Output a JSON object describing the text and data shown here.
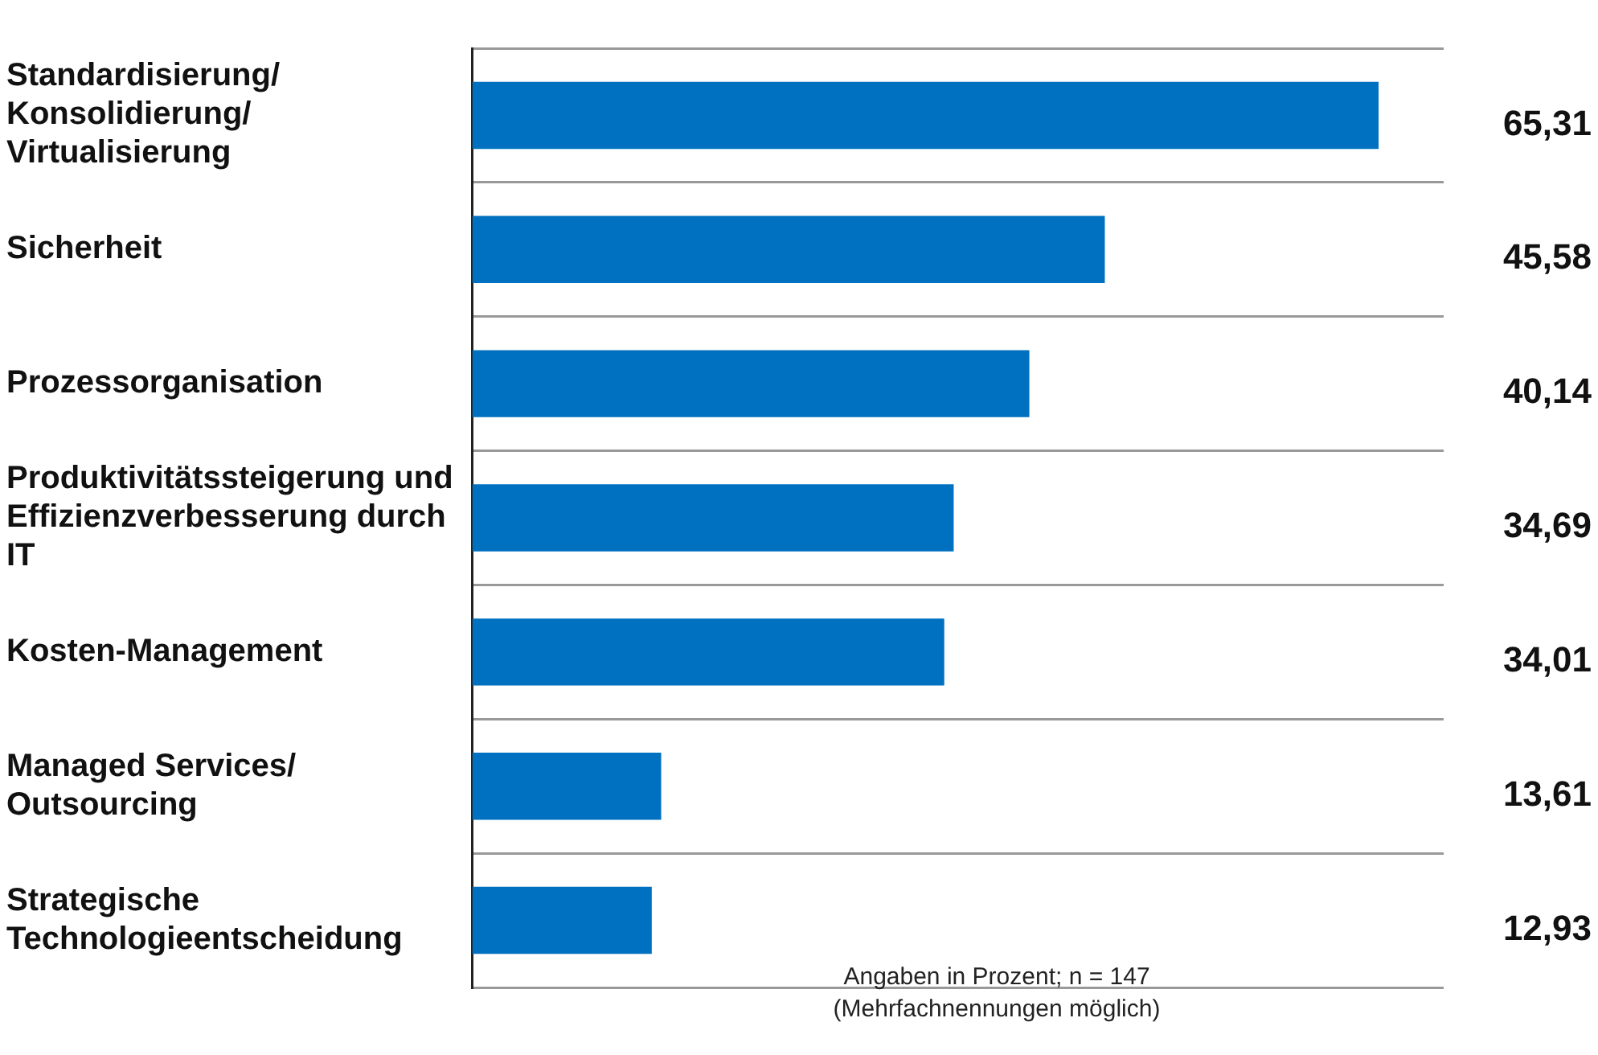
{
  "chart_data": {
    "type": "bar",
    "orientation": "horizontal",
    "categories": [
      "Standardisierung/ Konsolidierung/ Virtualisierung",
      "Sicherheit",
      "Prozessorganisation",
      "Produktivitätssteigerung und Effizienzverbesserung durch IT",
      "Kosten-Management",
      "Managed Services/ Outsourcing",
      "Strategische Technologieentscheidung"
    ],
    "values": [
      65.31,
      45.58,
      40.14,
      34.69,
      34.01,
      13.61,
      12.93
    ],
    "value_labels": [
      "65,31",
      "45,58",
      "40,14",
      "34,69",
      "34,01",
      "13,61",
      "12,93"
    ],
    "color": "#0070c0",
    "grid": "y",
    "legend": false,
    "tick_labels": "y",
    "annotations": [
      "Angaben in Prozent; n = 147 (Mehrfachnennungen möglich)"
    ]
  }
}
